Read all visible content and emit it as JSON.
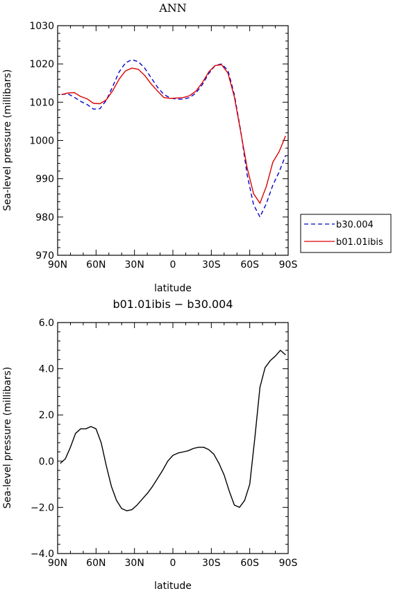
{
  "chart_data": [
    {
      "type": "line",
      "title": "ANN",
      "xlabel": "latitude",
      "ylabel": "Sea-level pressure (millibars)",
      "xlim": [
        90,
        -90
      ],
      "ylim": [
        970,
        1030
      ],
      "x_ticks": [
        90,
        60,
        30,
        0,
        -30,
        -60,
        -90
      ],
      "x_tick_labels": [
        "90N",
        "60N",
        "30N",
        "0",
        "30S",
        "60S",
        "90S"
      ],
      "y_ticks": [
        970,
        980,
        990,
        1000,
        1010,
        1020,
        1030
      ],
      "y_tick_labels": [
        "970",
        "980",
        "990",
        "1000",
        "1010",
        "1020",
        "1030"
      ],
      "legend_position": "outside-right",
      "series": [
        {
          "name": "b30.004",
          "color": "#0000cc",
          "style": "dashed",
          "x": [
            87,
            82,
            77,
            72,
            67,
            62,
            57,
            52,
            47,
            42,
            37,
            32,
            27,
            22,
            17,
            12,
            7,
            2,
            -3,
            -8,
            -13,
            -18,
            -23,
            -28,
            -33,
            -38,
            -43,
            -48,
            -53,
            -58,
            -63,
            -68,
            -73,
            -78,
            -83,
            -88
          ],
          "values": [
            1012.0,
            1012.2,
            1011.3,
            1010.2,
            1009.4,
            1008.2,
            1008.3,
            1010.5,
            1014.1,
            1017.9,
            1020.3,
            1021.1,
            1020.6,
            1018.9,
            1016.4,
            1013.9,
            1012.0,
            1011.1,
            1010.8,
            1010.8,
            1011.2,
            1012.4,
            1014.6,
            1017.5,
            1019.6,
            1020.0,
            1018.3,
            1012.0,
            1002.4,
            991.0,
            983.2,
            980.0,
            983.5,
            988.3,
            991.8,
            996.1
          ]
        },
        {
          "name": "b01.01ibis",
          "color": "#dd0000",
          "style": "solid",
          "x": [
            87,
            82,
            77,
            72,
            67,
            62,
            57,
            52,
            47,
            42,
            37,
            32,
            27,
            22,
            17,
            12,
            7,
            2,
            -3,
            -8,
            -13,
            -18,
            -23,
            -28,
            -33,
            -38,
            -43,
            -48,
            -53,
            -58,
            -63,
            -68,
            -73,
            -78,
            -83,
            -88
          ],
          "values": [
            1012.0,
            1012.4,
            1012.5,
            1011.5,
            1010.9,
            1009.7,
            1009.6,
            1010.6,
            1013.0,
            1016.0,
            1018.2,
            1018.9,
            1018.6,
            1017.0,
            1014.8,
            1012.9,
            1011.2,
            1011.0,
            1011.1,
            1011.2,
            1011.7,
            1012.9,
            1015.1,
            1017.9,
            1019.6,
            1019.8,
            1017.6,
            1011.4,
            1002.1,
            992.8,
            986.1,
            983.6,
            988.0,
            994.3,
            997.1,
            1001.2
          ]
        }
      ]
    },
    {
      "type": "line",
      "title": "b01.01ibis − b30.004",
      "xlabel": "latitude",
      "ylabel": "Sea-level pressure (millibars)",
      "xlim": [
        90,
        -90
      ],
      "ylim": [
        -4.0,
        6.0
      ],
      "x_ticks": [
        90,
        60,
        30,
        0,
        -30,
        -60,
        -90
      ],
      "x_tick_labels": [
        "90N",
        "60N",
        "30N",
        "0",
        "30S",
        "60S",
        "90S"
      ],
      "y_ticks": [
        -4,
        -2,
        0,
        2,
        4,
        6
      ],
      "y_tick_labels": [
        "−4.0",
        "−2.0",
        "0.0",
        "2.0",
        "4.0",
        "6.0"
      ],
      "series": [
        {
          "color": "#000000",
          "style": "solid",
          "x": [
            88,
            84,
            80,
            76,
            72,
            68,
            64,
            60,
            56,
            52,
            48,
            44,
            40,
            36,
            32,
            28,
            24,
            20,
            16,
            12,
            8,
            4,
            0,
            -4,
            -8,
            -12,
            -16,
            -20,
            -24,
            -28,
            -32,
            -36,
            -40,
            -44,
            -48,
            -52,
            -56,
            -60,
            -64,
            -68,
            -72,
            -76,
            -80,
            -84,
            -88
          ],
          "values": [
            -0.1,
            0.1,
            0.6,
            1.2,
            1.4,
            1.4,
            1.5,
            1.4,
            0.8,
            -0.2,
            -1.1,
            -1.7,
            -2.05,
            -2.15,
            -2.1,
            -1.9,
            -1.65,
            -1.4,
            -1.1,
            -0.75,
            -0.4,
            0.0,
            0.25,
            0.35,
            0.4,
            0.45,
            0.55,
            0.6,
            0.6,
            0.5,
            0.3,
            -0.1,
            -0.6,
            -1.3,
            -1.9,
            -2.0,
            -1.7,
            -1.0,
            1.0,
            3.2,
            4.05,
            4.35,
            4.55,
            4.8,
            4.6
          ]
        }
      ]
    }
  ]
}
